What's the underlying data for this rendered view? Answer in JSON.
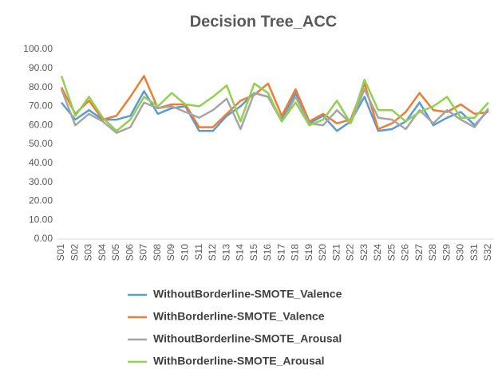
{
  "chart_data": {
    "type": "line",
    "title": "Decision Tree_ACC",
    "categories": [
      "S01",
      "S02",
      "S03",
      "S04",
      "S05",
      "S06",
      "S07",
      "S08",
      "S09",
      "S10",
      "S11",
      "S12",
      "S13",
      "S14",
      "S15",
      "S16",
      "S17",
      "S18",
      "S19",
      "S20",
      "S21",
      "S22",
      "S23",
      "S24",
      "S25",
      "S26",
      "S27",
      "S28",
      "S29",
      "S30",
      "S31",
      "S32"
    ],
    "series": [
      {
        "name": "WithoutBorderline-SMOTE_Valence",
        "color": "#5b9bd5",
        "values": [
          72,
          63,
          68,
          63,
          63,
          65,
          78,
          66,
          69,
          70,
          57,
          57,
          65,
          70,
          77,
          75,
          63,
          77,
          61,
          65,
          57,
          62,
          75,
          57,
          58,
          62,
          72,
          60,
          64,
          67,
          60,
          68
        ]
      },
      {
        "name": "WithBorderline-SMOTE_Valence",
        "color": "#ed7d31",
        "values": [
          80,
          66,
          73,
          63,
          65,
          75,
          86,
          69,
          71,
          71,
          59,
          59,
          66,
          73,
          76,
          82,
          65,
          79,
          62,
          66,
          61,
          63,
          82,
          58,
          61,
          67,
          77,
          68,
          67,
          71,
          66,
          67
        ]
      },
      {
        "name": "WithoutBorderline-SMOTE_Arousal",
        "color": "#a5a5a5",
        "values": [
          79,
          60,
          66,
          62,
          56,
          59,
          72,
          69,
          70,
          67,
          64,
          68,
          74,
          58,
          77,
          75,
          62,
          75,
          61,
          60,
          68,
          61,
          79,
          64,
          63,
          58,
          68,
          61,
          68,
          63,
          59,
          69
        ]
      },
      {
        "name": "WithBorderline-SMOTE_Arousal",
        "color": "#92d050",
        "values": [
          86,
          65,
          75,
          64,
          57,
          63,
          75,
          70,
          77,
          71,
          70,
          75,
          81,
          62,
          82,
          77,
          62,
          72,
          60,
          63,
          73,
          61,
          84,
          68,
          68,
          62,
          67,
          70,
          75,
          64,
          64,
          72
        ]
      }
    ],
    "ylim": [
      0,
      100
    ],
    "yticks": [
      {
        "value": 0,
        "label": "0.00"
      },
      {
        "value": 10,
        "label": "10.00"
      },
      {
        "value": 20,
        "label": "20.00"
      },
      {
        "value": 30,
        "label": "30.00"
      },
      {
        "value": 40,
        "label": "40.00"
      },
      {
        "value": 50,
        "label": "50.00"
      },
      {
        "value": 60,
        "label": "60.00"
      },
      {
        "value": 70,
        "label": "70.00"
      },
      {
        "value": 80,
        "label": "80.00"
      },
      {
        "value": 90,
        "label": "90.00"
      },
      {
        "value": 100,
        "label": "100.00"
      }
    ],
    "grid": false
  }
}
